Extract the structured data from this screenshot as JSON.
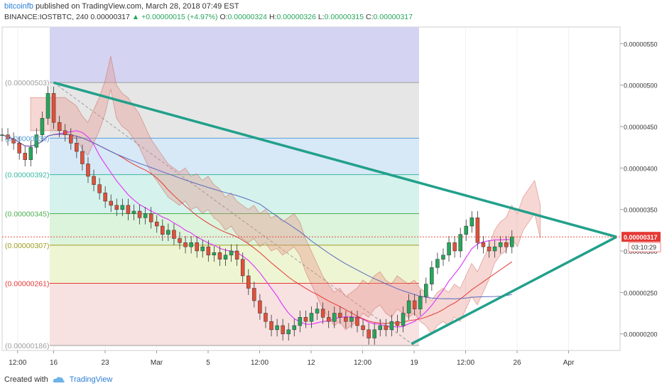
{
  "header": {
    "author": "bitcoinfb",
    "published": "published on TradingView.com, March 28, 2018 07:49 EST",
    "symbol": "BINANCE:IOSTBTC, 240",
    "last": "0.00000317",
    "change": "▲ +0.00000015 (+4.97%)",
    "o_label": "O:",
    "o": "0.00000324",
    "h_label": "H:",
    "h": "0.00000326",
    "l_label": "L:",
    "l": "0.00000315",
    "c_label": "C:",
    "c": "0.00000317"
  },
  "footer": {
    "created_with": "Created with",
    "brand": "TradingView"
  },
  "colors": {
    "up": "#26a65b",
    "down": "#e0503a",
    "triangle": "#21a08a",
    "price_label": "#e53935"
  },
  "chart_data": {
    "type": "candlestick",
    "y_range": [
      1.8e-06,
      5.7e-06
    ],
    "y_ticks": [
      "0.00000550",
      "0.00000500",
      "0.00000450",
      "0.00000400",
      "0.00000350",
      "0.00000300",
      "0.00000250",
      "0.00000200"
    ],
    "y_tick_values": [
      5.5e-06,
      5e-06,
      4.5e-06,
      4e-06,
      3.5e-06,
      3e-06,
      2.5e-06,
      2e-06
    ],
    "x_ticks": [
      "12:00",
      "16",
      "23",
      "Mar",
      "5",
      "12:00",
      "12",
      "12:00",
      "19",
      "12:00",
      "26",
      "Apr"
    ],
    "x_tick_values": [
      0.3,
      1.0,
      2.0,
      3.0,
      4.0,
      5.0,
      6.0,
      7.0,
      8.0,
      9.0,
      10.0,
      11.0
    ],
    "x_range": [
      0,
      12
    ],
    "price_label": "0.00000317",
    "countdown_label": "03:10:29",
    "current_price": 3.17e-06,
    "fib_levels": [
      {
        "label": "(0.00000503)",
        "value": 5.03e-06,
        "color": "#9e9e9e"
      },
      {
        "label": "(0.00000436)",
        "value": 4.36e-06,
        "color": "#5aa0d8"
      },
      {
        "label": "(0.00000392)",
        "value": 3.92e-06,
        "color": "#3cb8a4"
      },
      {
        "label": "(0.00000345)",
        "value": 3.45e-06,
        "color": "#4caf50"
      },
      {
        "label": "(0.00000307)",
        "value": 3.07e-06,
        "color": "#9e9d24"
      },
      {
        "label": "(0.00000261)",
        "value": 2.61e-06,
        "color": "#e53935"
      },
      {
        "label": "(0.00000186)",
        "value": 1.86e-06,
        "color": "#9e9e9e"
      }
    ],
    "closes": [
      4.4,
      4.35,
      4.3,
      4.18,
      4.1,
      4.25,
      4.4,
      4.6,
      4.9,
      4.55,
      4.45,
      4.4,
      4.3,
      4.2,
      4.05,
      3.9,
      3.8,
      3.7,
      3.6,
      3.55,
      3.5,
      3.55,
      3.45,
      3.48,
      3.4,
      3.45,
      3.35,
      3.3,
      3.2,
      3.25,
      3.15,
      3.1,
      3.05,
      3.1,
      3.0,
      3.05,
      2.95,
      2.98,
      2.9,
      2.95,
      3.0,
      2.9,
      2.7,
      2.55,
      2.4,
      2.25,
      2.15,
      2.05,
      2.1,
      2.0,
      2.05,
      2.1,
      2.2,
      2.15,
      2.25,
      2.3,
      2.2,
      2.15,
      2.25,
      2.2,
      2.15,
      2.2,
      2.1,
      2.05,
      1.95,
      2.05,
      2.1,
      2.05,
      2.15,
      2.1,
      2.25,
      2.4,
      2.3,
      2.45,
      2.6,
      2.8,
      2.9,
      2.95,
      3.1,
      3.0,
      3.2,
      3.3,
      3.4,
      3.1,
      3.05,
      3.0,
      3.05,
      3.1,
      3.05,
      3.17
    ]
  }
}
